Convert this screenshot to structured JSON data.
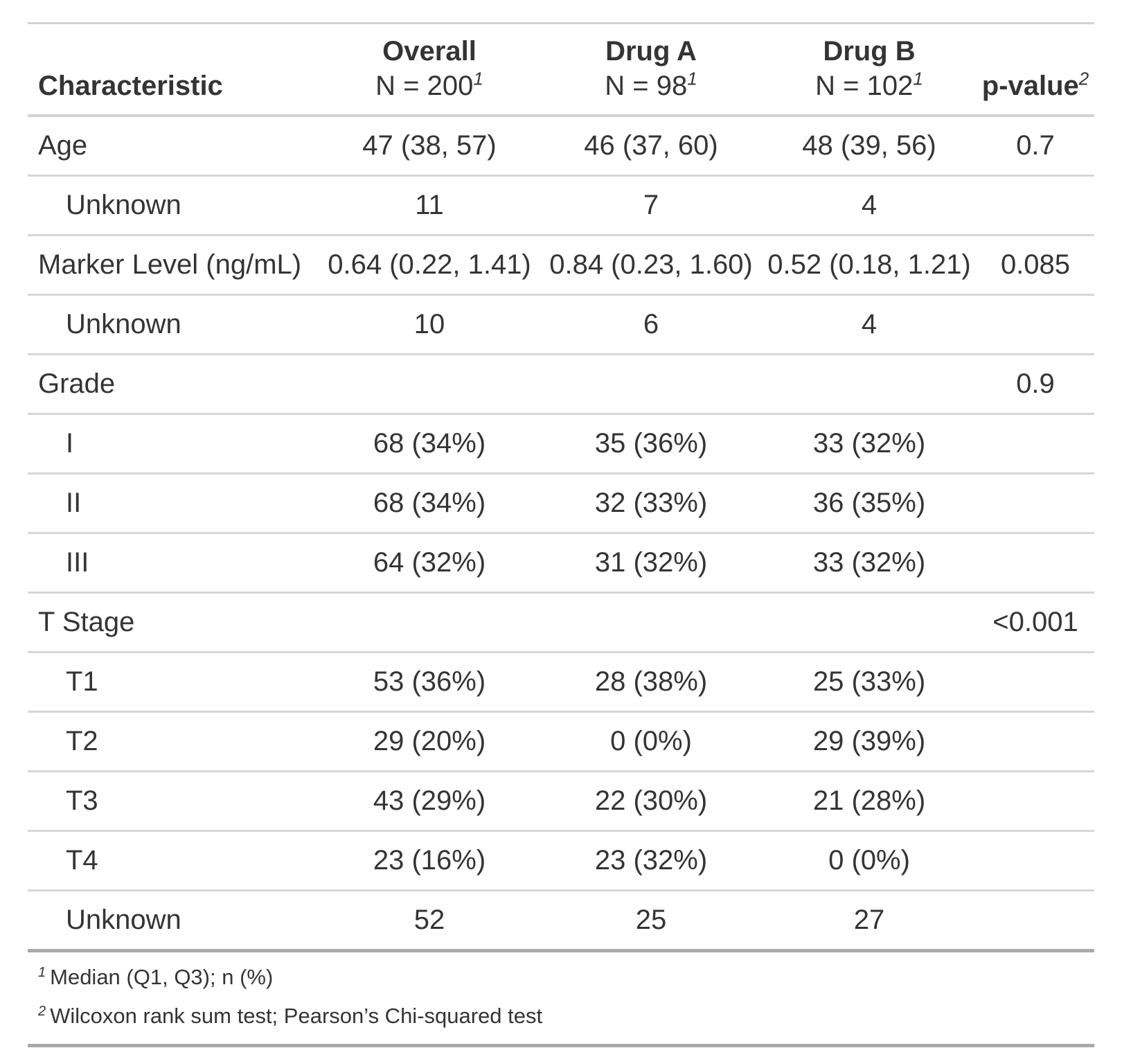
{
  "chart_data": {
    "type": "table",
    "columns": [
      {
        "label": "Characteristic",
        "sublabel": "",
        "sup": ""
      },
      {
        "label": "Overall",
        "sublabel": "N = 200",
        "sup": "1"
      },
      {
        "label": "Drug A",
        "sublabel": "N = 98",
        "sup": "1"
      },
      {
        "label": "Drug B",
        "sublabel": "N = 102",
        "sup": "1"
      },
      {
        "label": "p-value",
        "sublabel": "",
        "sup": "2"
      }
    ],
    "rows": [
      {
        "label": "Age",
        "indent": false,
        "overall": "47 (38, 57)",
        "drug_a": "46 (37, 60)",
        "drug_b": "48 (39, 56)",
        "p_value": "0.7"
      },
      {
        "label": "Unknown",
        "indent": true,
        "overall": "11",
        "drug_a": "7",
        "drug_b": "4",
        "p_value": ""
      },
      {
        "label": "Marker Level (ng/mL)",
        "indent": false,
        "overall": "0.64 (0.22, 1.41)",
        "drug_a": "0.84 (0.23, 1.60)",
        "drug_b": "0.52 (0.18, 1.21)",
        "p_value": "0.085"
      },
      {
        "label": "Unknown",
        "indent": true,
        "overall": "10",
        "drug_a": "6",
        "drug_b": "4",
        "p_value": ""
      },
      {
        "label": "Grade",
        "indent": false,
        "overall": "",
        "drug_a": "",
        "drug_b": "",
        "p_value": "0.9"
      },
      {
        "label": "I",
        "indent": true,
        "overall": "68 (34%)",
        "drug_a": "35 (36%)",
        "drug_b": "33 (32%)",
        "p_value": ""
      },
      {
        "label": "II",
        "indent": true,
        "overall": "68 (34%)",
        "drug_a": "32 (33%)",
        "drug_b": "36 (35%)",
        "p_value": ""
      },
      {
        "label": "III",
        "indent": true,
        "overall": "64 (32%)",
        "drug_a": "31 (32%)",
        "drug_b": "33 (32%)",
        "p_value": ""
      },
      {
        "label": "T Stage",
        "indent": false,
        "overall": "",
        "drug_a": "",
        "drug_b": "",
        "p_value": "<0.001"
      },
      {
        "label": "T1",
        "indent": true,
        "overall": "53 (36%)",
        "drug_a": "28 (38%)",
        "drug_b": "25 (33%)",
        "p_value": ""
      },
      {
        "label": "T2",
        "indent": true,
        "overall": "29 (20%)",
        "drug_a": "0 (0%)",
        "drug_b": "29 (39%)",
        "p_value": ""
      },
      {
        "label": "T3",
        "indent": true,
        "overall": "43 (29%)",
        "drug_a": "22 (30%)",
        "drug_b": "21 (28%)",
        "p_value": ""
      },
      {
        "label": "T4",
        "indent": true,
        "overall": "23 (16%)",
        "drug_a": "23 (32%)",
        "drug_b": "0 (0%)",
        "p_value": ""
      },
      {
        "label": "Unknown",
        "indent": true,
        "overall": "52",
        "drug_a": "25",
        "drug_b": "27",
        "p_value": ""
      }
    ],
    "footnotes": [
      {
        "sup": "1",
        "text": "Median (Q1, Q3); n (%)"
      },
      {
        "sup": "2",
        "text": "Wilcoxon rank sum test; Pearson’s Chi-squared test"
      }
    ]
  },
  "colors": {
    "text": "#343434",
    "border_light": "#d3d3d3",
    "border_dark": "#a9a9a9",
    "background": "#ffffff"
  }
}
